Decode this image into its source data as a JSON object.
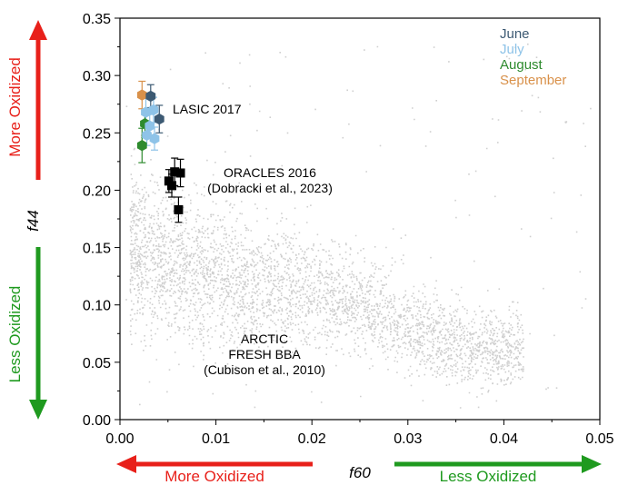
{
  "chart_data": {
    "type": "scatter",
    "xlabel": "f60",
    "ylabel": "f44",
    "xlim": [
      0.0,
      0.05
    ],
    "ylim": [
      0.0,
      0.35
    ],
    "x_ticks": [
      "0.00",
      "0.01",
      "0.02",
      "0.03",
      "0.04",
      "0.05"
    ],
    "y_ticks": [
      "0.00",
      "0.05",
      "0.10",
      "0.15",
      "0.20",
      "0.25",
      "0.30",
      "0.35"
    ],
    "legend_position": "top-right",
    "legend": [
      {
        "name": "June",
        "color": "#3d5a73"
      },
      {
        "name": "July",
        "color": "#8ec3e8"
      },
      {
        "name": "August",
        "color": "#2e8b2e"
      },
      {
        "name": "September",
        "color": "#d9914a"
      }
    ],
    "annotations": {
      "lasic": "LASIC 2017",
      "oracles_line1": "ORACLES 2016",
      "oracles_line2": "(Dobracki et al., 2023)",
      "arctic_line1": "ARCTIC",
      "arctic_line2": "FRESH BBA",
      "arctic_line3": "(Cubison et al., 2010)"
    },
    "background_cloud": {
      "name": "ARCTIC FRESH BBA",
      "color": "#cfcfcf",
      "ridge": [
        [
          0.0015,
          0.15
        ],
        [
          0.005,
          0.135
        ],
        [
          0.01,
          0.125
        ],
        [
          0.015,
          0.118
        ],
        [
          0.02,
          0.112
        ],
        [
          0.024,
          0.105
        ],
        [
          0.028,
          0.088
        ],
        [
          0.032,
          0.075
        ],
        [
          0.036,
          0.066
        ],
        [
          0.04,
          0.062
        ]
      ]
    },
    "series": [
      {
        "name": "September",
        "color": "#d9914a",
        "marker": "hexagon",
        "points": [
          {
            "x": 0.0023,
            "y": 0.283,
            "err": 0.012
          }
        ]
      },
      {
        "name": "June",
        "color": "#3d5a73",
        "marker": "hexagon",
        "points": [
          {
            "x": 0.0032,
            "y": 0.282,
            "err": 0.01
          },
          {
            "x": 0.0041,
            "y": 0.262,
            "err": 0.012
          }
        ]
      },
      {
        "name": "July",
        "color": "#8ec3e8",
        "marker": "hexagon",
        "points": [
          {
            "x": 0.0027,
            "y": 0.268,
            "err": 0.012
          },
          {
            "x": 0.0035,
            "y": 0.27,
            "err": 0.011
          },
          {
            "x": 0.0031,
            "y": 0.256,
            "err": 0.01
          },
          {
            "x": 0.0036,
            "y": 0.245,
            "err": 0.01
          },
          {
            "x": 0.0028,
            "y": 0.248,
            "err": 0.009
          }
        ]
      },
      {
        "name": "August",
        "color": "#2e8b2e",
        "marker": "hexagon",
        "points": [
          {
            "x": 0.0026,
            "y": 0.258,
            "err": 0.012
          },
          {
            "x": 0.0023,
            "y": 0.239,
            "err": 0.015
          }
        ]
      },
      {
        "name": "ORACLES 2016",
        "color": "#000000",
        "marker": "square",
        "points": [
          {
            "x": 0.0057,
            "y": 0.216,
            "err": 0.012
          },
          {
            "x": 0.0063,
            "y": 0.215,
            "err": 0.012
          },
          {
            "x": 0.0051,
            "y": 0.208,
            "err": 0.01
          },
          {
            "x": 0.0054,
            "y": 0.204,
            "err": 0.01
          },
          {
            "x": 0.0061,
            "y": 0.183,
            "err": 0.011
          }
        ]
      }
    ],
    "arrows": {
      "y_up": {
        "label": "More Oxidized",
        "color": "#e8201a"
      },
      "y_down": {
        "label": "Less Oxidized",
        "color": "#1f9a1f"
      },
      "x_left": {
        "label": "More Oxidized",
        "color": "#e8201a"
      },
      "x_right": {
        "label": "Less Oxidized",
        "color": "#1f9a1f"
      }
    }
  }
}
